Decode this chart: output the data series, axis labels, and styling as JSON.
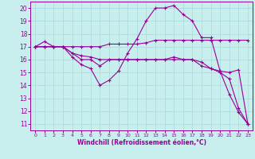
{
  "xlabel": "Windchill (Refroidissement éolien,°C)",
  "background_color": "#c8eeed",
  "grid_color": "#a8d8d8",
  "line_color": "#990099",
  "xlim": [
    -0.5,
    23.5
  ],
  "ylim": [
    10.5,
    20.5
  ],
  "xticks": [
    0,
    1,
    2,
    3,
    4,
    5,
    6,
    7,
    8,
    9,
    10,
    11,
    12,
    13,
    14,
    15,
    16,
    17,
    18,
    19,
    20,
    21,
    22,
    23
  ],
  "yticks": [
    11,
    12,
    13,
    14,
    15,
    16,
    17,
    18,
    19,
    20
  ],
  "series": [
    {
      "x": [
        0,
        1,
        2,
        3,
        4,
        5,
        6,
        7,
        8,
        9,
        10,
        11,
        12,
        13,
        14,
        15,
        16,
        17,
        18,
        19,
        20,
        21,
        22,
        23
      ],
      "y": [
        17,
        17.4,
        17,
        17,
        16.2,
        15.6,
        15.3,
        14.0,
        14.4,
        15.1,
        16.5,
        17.6,
        19.0,
        20.0,
        20.0,
        20.2,
        19.5,
        19.0,
        17.7,
        17.7,
        15.1,
        13.3,
        11.9,
        11.0
      ]
    },
    {
      "x": [
        0,
        1,
        2,
        3,
        4,
        5,
        6,
        7,
        8,
        9,
        10,
        11,
        12,
        13,
        14,
        15,
        16,
        17,
        18,
        19,
        20,
        21,
        22,
        23
      ],
      "y": [
        17,
        17,
        17,
        17,
        17,
        17,
        17,
        17,
        17.2,
        17.2,
        17.2,
        17.2,
        17.3,
        17.5,
        17.5,
        17.5,
        17.5,
        17.5,
        17.5,
        17.5,
        17.5,
        17.5,
        17.5,
        17.5
      ]
    },
    {
      "x": [
        0,
        1,
        2,
        3,
        4,
        5,
        6,
        7,
        8,
        9,
        10,
        11,
        12,
        13,
        14,
        15,
        16,
        17,
        18,
        19,
        20,
        21,
        22,
        23
      ],
      "y": [
        17,
        17,
        17,
        17,
        16.5,
        16.3,
        16.2,
        16.0,
        16.0,
        16.0,
        16.0,
        16.0,
        16.0,
        16.0,
        16.0,
        16.0,
        16.0,
        16.0,
        15.5,
        15.3,
        15.1,
        15.0,
        15.2,
        11.0
      ]
    },
    {
      "x": [
        0,
        1,
        2,
        3,
        4,
        5,
        6,
        7,
        8,
        9,
        10,
        11,
        12,
        13,
        14,
        15,
        16,
        17,
        18,
        19,
        20,
        21,
        22,
        23
      ],
      "y": [
        17,
        17,
        17,
        17,
        16.5,
        16.0,
        16.0,
        15.5,
        16.0,
        16.0,
        16.0,
        16.0,
        16.0,
        16.0,
        16.0,
        16.2,
        16.0,
        16.0,
        15.8,
        15.3,
        15.0,
        14.5,
        12.2,
        11.0
      ]
    }
  ]
}
